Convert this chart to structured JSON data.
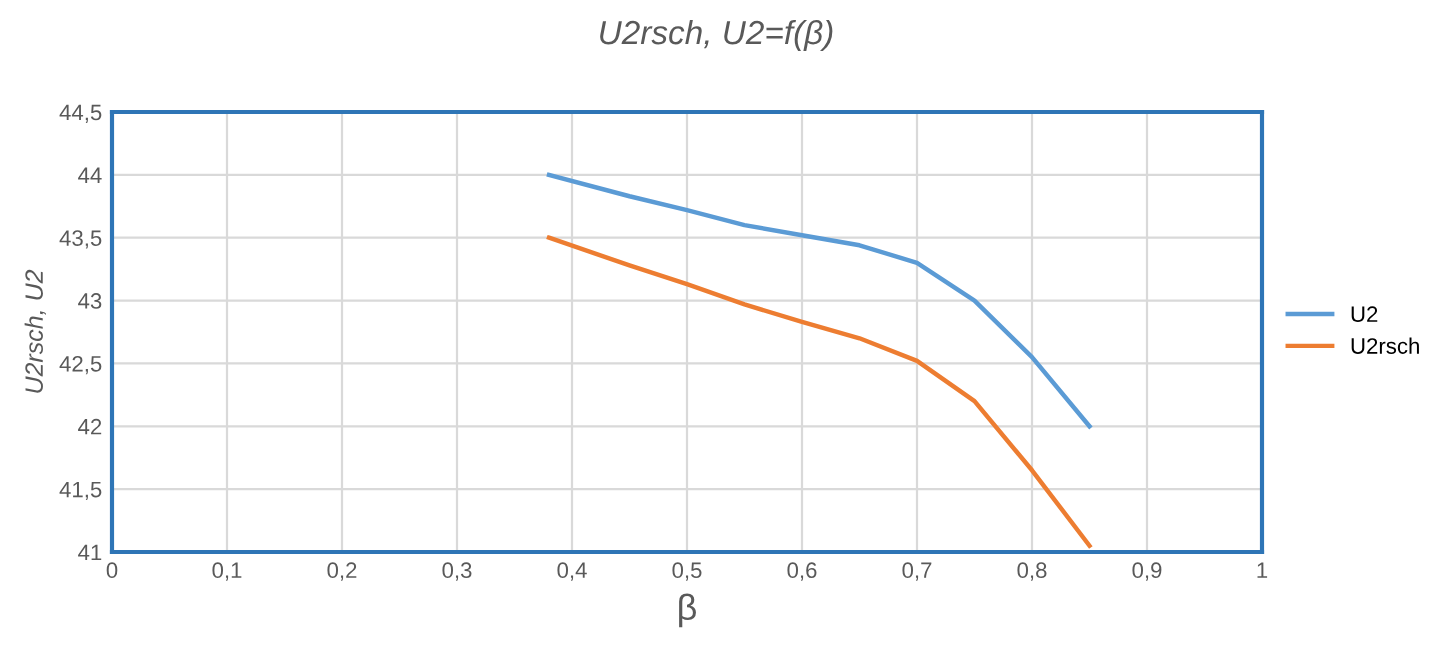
{
  "chart_data": {
    "type": "line",
    "title": "U2rsch, U2=f(β)",
    "xlabel": "β",
    "ylabel": "U2rsch, U2",
    "xlim": [
      0,
      1
    ],
    "ylim": [
      41,
      44.5
    ],
    "xticks": [
      0,
      {
        "value": 0.1,
        "label": "0,1"
      },
      {
        "value": 0.2,
        "label": "0,2"
      },
      {
        "value": 0.3,
        "label": "0,3"
      },
      {
        "value": 0.4,
        "label": "0,4"
      },
      {
        "value": 0.5,
        "label": "0,5"
      },
      {
        "value": 0.6,
        "label": "0,6"
      },
      {
        "value": 0.7,
        "label": "0,7"
      },
      {
        "value": 0.8,
        "label": "0,8"
      },
      {
        "value": 0.9,
        "label": "0,9"
      },
      1
    ],
    "yticks": [
      41,
      {
        "value": 41.5,
        "label": "41,5"
      },
      42,
      {
        "value": 42.5,
        "label": "42,5"
      },
      43,
      {
        "value": 43.5,
        "label": "43,5"
      },
      44,
      {
        "value": 44.5,
        "label": "44,5"
      }
    ],
    "grid": true,
    "legend": "right",
    "marker": "none",
    "line_style": "solid",
    "x": [
      0.38,
      0.45,
      0.5,
      0.55,
      0.6,
      0.65,
      0.7,
      0.75,
      0.8,
      0.85
    ],
    "series": [
      {
        "name": "U2",
        "color": "#5b9bd5",
        "values": [
          44.0,
          43.83,
          43.72,
          43.6,
          43.52,
          43.44,
          43.3,
          43.0,
          42.55,
          42.0
        ]
      },
      {
        "name": "U2rsch",
        "color": "#ed7d31",
        "values": [
          43.5,
          43.28,
          43.13,
          42.97,
          42.83,
          42.7,
          42.52,
          42.2,
          41.65,
          41.05
        ]
      }
    ]
  }
}
